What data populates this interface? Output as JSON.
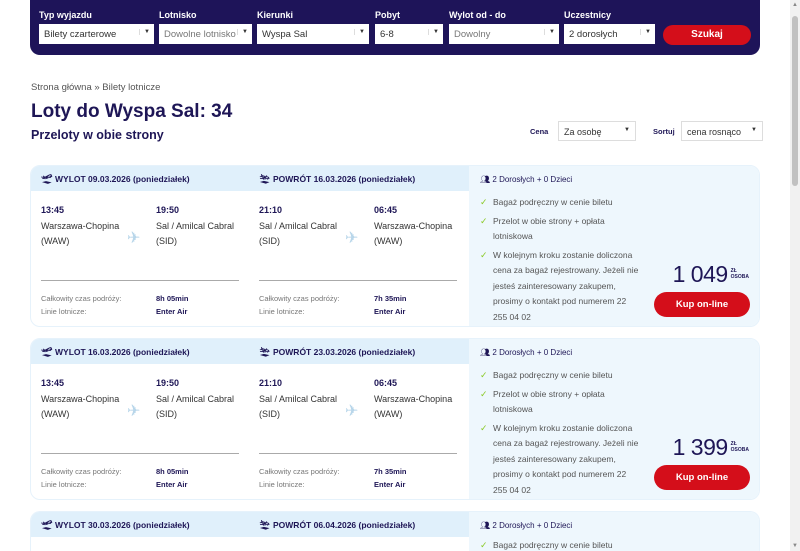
{
  "search": {
    "fields": [
      {
        "label": "Typ wyjazdu",
        "value": "Bilety czarterowe",
        "placeholder": false
      },
      {
        "label": "Lotnisko",
        "value": "Dowolne lotnisko",
        "placeholder": true
      },
      {
        "label": "Kierunki",
        "value": "Wyspa Sal",
        "placeholder": false
      },
      {
        "label": "Pobyt",
        "value": "6-8",
        "placeholder": false
      },
      {
        "label": "Wylot od - do",
        "value": "Dowolny",
        "placeholder": true
      },
      {
        "label": "Uczestnicy",
        "value": "2 dorosłych",
        "placeholder": false
      }
    ],
    "button": "Szukaj"
  },
  "breadcrumb": "Strona główna » Bilety lotnicze",
  "title": "Loty do Wyspa Sal: 34",
  "subtitle": "Przeloty w obie strony",
  "filters": {
    "price_label": "Cena",
    "price_value": "Za osobę",
    "sort_label": "Sortuj",
    "sort_value": "cena rosnąco"
  },
  "labels": {
    "total_time": "Całkowity czas podróży:",
    "airline": "Linie lotnicze:",
    "buy": "Kup on-line",
    "unit1": "ZŁ",
    "unit2": "OSOBA"
  },
  "colors": {
    "navy": "#1e1459",
    "red": "#d40e1a",
    "light_blue": "#e0f0fb",
    "check": "#8ac926"
  },
  "offers": [
    {
      "out_header": "WYLOT 09.03.2026 (poniedziałek)",
      "ret_header": "POWRÓT 16.03.2026 (poniedziałek)",
      "out": {
        "dep_time": "13:45",
        "dep_city": "Warszawa-Chopina",
        "dep_code": "(WAW)",
        "arr_time": "19:50",
        "arr_city": "Sal / Amilcal Cabral",
        "arr_code": "(SID)",
        "duration": "8h 05min",
        "airline": "Enter Air"
      },
      "ret": {
        "dep_time": "21:10",
        "dep_city": "Sal / Amilcal Cabral",
        "dep_code": "(SID)",
        "arr_time": "06:45",
        "arr_city": "Warszawa-Chopina",
        "arr_code": "(WAW)",
        "duration": "7h 35min",
        "airline": "Enter Air"
      },
      "pax": "2 Dorosłych + 0 Dzieci",
      "features": [
        "Bagaż podręczny w cenie biletu",
        "Przelot w obie strony + opłata lotniskowa",
        "W kolejnym kroku zostanie doliczona cena za bagaż rejestrowany. Jeżeli nie jesteś zainteresowany zakupem, prosimy o kontakt pod numerem 22 255 04 02"
      ],
      "price": "1 049"
    },
    {
      "out_header": "WYLOT 16.03.2026 (poniedziałek)",
      "ret_header": "POWRÓT 23.03.2026 (poniedziałek)",
      "out": {
        "dep_time": "13:45",
        "dep_city": "Warszawa-Chopina",
        "dep_code": "(WAW)",
        "arr_time": "19:50",
        "arr_city": "Sal / Amilcal Cabral",
        "arr_code": "(SID)",
        "duration": "8h 05min",
        "airline": "Enter Air"
      },
      "ret": {
        "dep_time": "21:10",
        "dep_city": "Sal / Amilcal Cabral",
        "dep_code": "(SID)",
        "arr_time": "06:45",
        "arr_city": "Warszawa-Chopina",
        "arr_code": "(WAW)",
        "duration": "7h 35min",
        "airline": "Enter Air"
      },
      "pax": "2 Dorosłych + 0 Dzieci",
      "features": [
        "Bagaż podręczny w cenie biletu",
        "Przelot w obie strony + opłata lotniskowa",
        "W kolejnym kroku zostanie doliczona cena za bagaż rejestrowany. Jeżeli nie jesteś zainteresowany zakupem, prosimy o kontakt pod numerem 22 255 04 02"
      ],
      "price": "1 399"
    },
    {
      "out_header": "WYLOT 30.03.2026 (poniedziałek)",
      "ret_header": "POWRÓT 06.04.2026 (poniedziałek)",
      "pax": "2 Dorosłych + 0 Dzieci",
      "features": [
        "Bagaż podręczny w cenie biletu"
      ]
    }
  ]
}
